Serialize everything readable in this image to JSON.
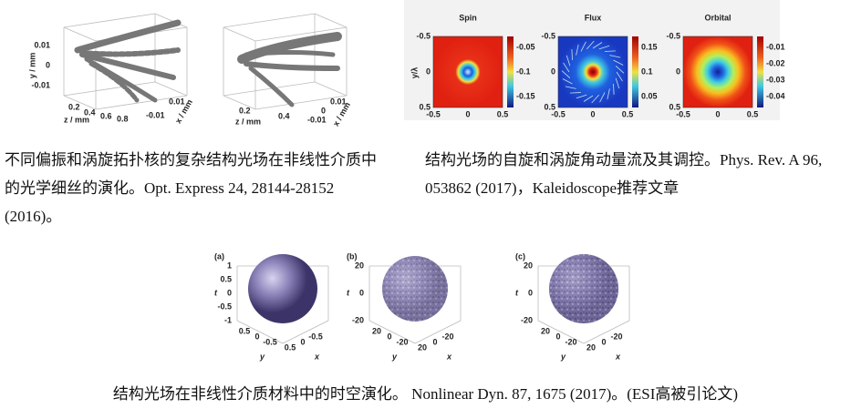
{
  "fig1": {
    "panels": [
      {
        "yticks": [
          "0.01",
          "0",
          "-0.01"
        ],
        "ylabel": "y / mm",
        "zticks": [
          "0.2",
          "0.4",
          "0.6",
          "0.8"
        ],
        "zlabel": "z / mm",
        "xticks": [
          "0.01",
          "-0.01"
        ],
        "xlabel": "x / mm"
      },
      {
        "zticks": [
          "0.2",
          "0.4"
        ],
        "zlabel": "z / mm",
        "xticks": [
          "0.01",
          "0",
          "-0.01"
        ],
        "xlabel": "x / mm"
      }
    ],
    "caption": "不同偏振和涡旋拓扑核的复杂结构光场在非线性介质中的光学细丝的演化。Opt. Express 24, 28144-28152 (2016)。"
  },
  "fig2": {
    "ylabel": "y/λ",
    "ticks": [
      "-0.5",
      "0",
      "0.5"
    ],
    "panels": [
      {
        "title": "Spin",
        "cbticks": [
          "-0.05",
          "-0.1",
          "-0.15"
        ]
      },
      {
        "title": "Flux",
        "cbticks": [
          "0.15",
          "0.1",
          "0.05"
        ]
      },
      {
        "title": "Orbital",
        "cbticks": [
          "-0.01",
          "-0.02",
          "-0.03",
          "-0.04"
        ]
      }
    ],
    "caption": "结构光场的自旋和涡旋角动量流及其调控。Phys. Rev. A 96, 053862 (2017)，Kaleidoscope推荐文章"
  },
  "fig3": {
    "panels": [
      {
        "label": "(a)",
        "tlabel": "t",
        "ticks": [
          "0.5",
          "0",
          "-0.5"
        ],
        "tticks": [
          "1",
          "0.5",
          "0",
          "-0.5",
          "-1"
        ],
        "ylabel": "y",
        "xlabel": "x"
      },
      {
        "label": "(b)",
        "tlabel": "t",
        "ticks": [
          "20",
          "0",
          "-20"
        ],
        "tticks": [
          "20",
          "0",
          "-20"
        ],
        "ylabel": "y",
        "xlabel": "x"
      },
      {
        "label": "(c)",
        "tlabel": "t",
        "ticks": [
          "20",
          "0",
          "-20"
        ],
        "tticks": [
          "20",
          "0",
          "-20"
        ],
        "ylabel": "y",
        "xlabel": "x"
      }
    ],
    "caption": "结构光场在非线性介质材料中的时空演化。 Nonlinear Dyn. 87, 1675 (2017)。(ESI高被引论文)"
  }
}
